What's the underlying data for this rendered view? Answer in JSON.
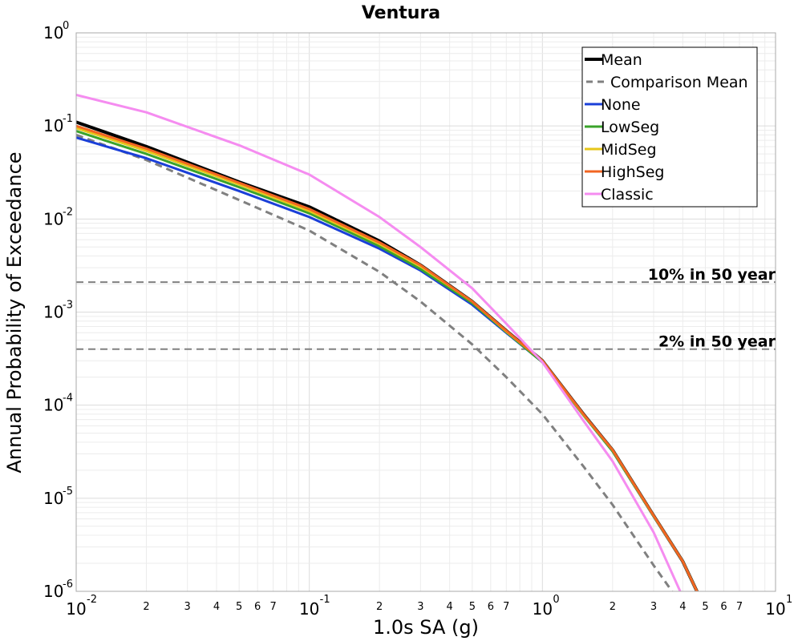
{
  "chart_data": {
    "type": "line",
    "title": "Ventura",
    "xlabel": "1.0s SA (g)",
    "ylabel": "Annual Probability of Exceedance",
    "xscale": "log",
    "yscale": "log",
    "xlim": [
      0.01,
      10
    ],
    "ylim": [
      1e-06,
      1
    ],
    "grid": true,
    "legend_position": "top-right",
    "x_major_ticks": [
      {
        "base": "10",
        "exp": "-2",
        "value": 0.01
      },
      {
        "base": "10",
        "exp": "-1",
        "value": 0.1
      },
      {
        "base": "10",
        "exp": "0",
        "value": 1
      },
      {
        "base": "10",
        "exp": "1",
        "value": 10
      }
    ],
    "x_minor_tick_labels": [
      "2",
      "3",
      "4",
      "5",
      "6",
      "7"
    ],
    "y_major_ticks": [
      {
        "base": "10",
        "exp": "0",
        "value": 1
      },
      {
        "base": "10",
        "exp": "-1",
        "value": 0.1
      },
      {
        "base": "10",
        "exp": "-2",
        "value": 0.01
      },
      {
        "base": "10",
        "exp": "-3",
        "value": 0.001
      },
      {
        "base": "10",
        "exp": "-4",
        "value": 0.0001
      },
      {
        "base": "10",
        "exp": "-5",
        "value": 1e-05
      },
      {
        "base": "10",
        "exp": "-6",
        "value": 1e-06
      }
    ],
    "reference_lines": [
      {
        "label": "10% in 50 year",
        "y": 0.0021,
        "color": "#808080"
      },
      {
        "label": "2% in 50 year",
        "y": 0.0004,
        "color": "#808080"
      }
    ],
    "series": [
      {
        "name": "Mean",
        "color": "#000000",
        "style": "solid",
        "width": 4,
        "x": [
          0.01,
          0.02,
          0.05,
          0.1,
          0.2,
          0.3,
          0.5,
          0.7,
          1.0,
          1.5,
          2.0,
          3.0,
          4.0,
          4.6
        ],
        "y": [
          0.11,
          0.06,
          0.025,
          0.0135,
          0.0058,
          0.0032,
          0.0013,
          0.00063,
          0.0003,
          8e-05,
          3.3e-05,
          6.5e-06,
          2.1e-06,
          1e-06
        ]
      },
      {
        "name": "Comparison Mean",
        "color": "#808080",
        "style": "dashed",
        "width": 3,
        "x": [
          0.01,
          0.02,
          0.05,
          0.1,
          0.2,
          0.3,
          0.5,
          0.7,
          1.0,
          1.5,
          2.0,
          3.0,
          3.6
        ],
        "y": [
          0.08,
          0.043,
          0.016,
          0.0075,
          0.0027,
          0.0013,
          0.00045,
          0.0002,
          8e-05,
          2.2e-05,
          8.5e-06,
          1.9e-06,
          1e-06
        ]
      },
      {
        "name": "None",
        "color": "#1a3fd8",
        "style": "solid",
        "width": 3,
        "x": [
          0.01,
          0.02,
          0.05,
          0.1,
          0.2,
          0.3,
          0.5,
          0.7,
          1.0,
          1.5,
          2.0,
          3.0,
          4.0,
          4.6
        ],
        "y": [
          0.075,
          0.045,
          0.02,
          0.0105,
          0.0048,
          0.0028,
          0.0012,
          0.0006,
          0.00029,
          7.8e-05,
          3.2e-05,
          6.4e-06,
          2.1e-06,
          1e-06
        ]
      },
      {
        "name": "LowSeg",
        "color": "#3aa32a",
        "style": "solid",
        "width": 3,
        "x": [
          0.01,
          0.02,
          0.05,
          0.1,
          0.2,
          0.3,
          0.5,
          0.7,
          1.0,
          1.5,
          2.0,
          3.0,
          4.0,
          4.6
        ],
        "y": [
          0.088,
          0.05,
          0.022,
          0.0115,
          0.0051,
          0.0029,
          0.00125,
          0.00061,
          0.00029,
          7.8e-05,
          3.2e-05,
          6.4e-06,
          2.1e-06,
          1e-06
        ]
      },
      {
        "name": "MidSeg",
        "color": "#e6c619",
        "style": "solid",
        "width": 3,
        "x": [
          0.01,
          0.02,
          0.05,
          0.1,
          0.2,
          0.3,
          0.5,
          0.7,
          1.0,
          1.5,
          2.0,
          3.0,
          4.0,
          4.6
        ],
        "y": [
          0.095,
          0.054,
          0.0235,
          0.0122,
          0.0054,
          0.0031,
          0.0013,
          0.00062,
          0.0003,
          7.9e-05,
          3.3e-05,
          6.5e-06,
          2.1e-06,
          1e-06
        ]
      },
      {
        "name": "HighSeg",
        "color": "#f26522",
        "style": "solid",
        "width": 3,
        "x": [
          0.01,
          0.02,
          0.05,
          0.1,
          0.2,
          0.3,
          0.5,
          0.7,
          1.0,
          1.5,
          2.0,
          3.0,
          4.0,
          4.6
        ],
        "y": [
          0.1,
          0.057,
          0.0245,
          0.0128,
          0.0056,
          0.0032,
          0.0013,
          0.00063,
          0.0003,
          8e-05,
          3.3e-05,
          6.5e-06,
          2.1e-06,
          1e-06
        ]
      },
      {
        "name": "Classic",
        "color": "#f58cf0",
        "style": "solid",
        "width": 3,
        "x": [
          0.01,
          0.02,
          0.05,
          0.1,
          0.2,
          0.3,
          0.5,
          0.7,
          1.0,
          1.5,
          2.0,
          3.0,
          3.9
        ],
        "y": [
          0.215,
          0.14,
          0.062,
          0.03,
          0.0105,
          0.005,
          0.0018,
          0.00075,
          0.00029,
          6.8e-05,
          2.5e-05,
          4.3e-06,
          1e-06
        ]
      }
    ]
  }
}
